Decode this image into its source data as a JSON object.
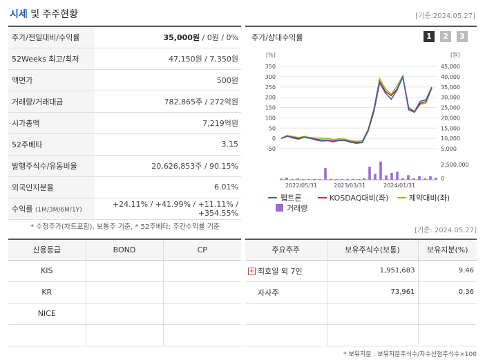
{
  "header": {
    "title_blue": "시세",
    "title_rest": " 및 주주현황",
    "date": "[기준:2024.05.27]"
  },
  "quote": {
    "price_label": "주가/전일대비/수익률",
    "price_value": "35,000원",
    "change_value": " / 0원 / 0%",
    "w52_label": "52Weeks 최고/최저",
    "w52_value": "47,150원 / 7,350원",
    "par_label": "액면가",
    "par_value": "500원",
    "volume_label": "거래량/거래대금",
    "volume_value": "782,865주 / 272억원",
    "mcap_label": "시가총액",
    "mcap_value": "7,219억원",
    "beta_label": "52주베타",
    "beta_value": "3.15",
    "shares_label": "발행주식수/유동비율",
    "shares_value": "20,626,853주 / 90.15%",
    "foreign_label": "외국인지분율",
    "foreign_value": "6.01%",
    "return_label": "수익률",
    "return_period": "(1M/3M/6M/1Y)",
    "return_value": "+24.11% / +41.99% / +11.11% / +354.55%"
  },
  "note1": "* 수정주가(차트포함), 보통주 기준, * 52주베타: 주간수익률 기준",
  "chart_header": {
    "title": "주가/상대수익률",
    "pages": [
      "1",
      "2",
      "3"
    ]
  },
  "chart_data": {
    "type": "line",
    "left_unit": "[%]",
    "right_unit": "[원]",
    "left_ticks": [
      "350",
      "300",
      "250",
      "200",
      "150",
      "100",
      "50",
      "0",
      "-50"
    ],
    "right_ticks": [
      "45,000",
      "40,000",
      "35,000",
      "30,000",
      "25,000",
      "20,000",
      "15,000",
      "10,000",
      "5,000"
    ],
    "ylim_left": [
      -50,
      350
    ],
    "volume_tick": "2,500,000",
    "volume_zero": "0",
    "x_labels": [
      "2022/05/31",
      "2023/03/31",
      "2024/01/31"
    ],
    "series": [
      {
        "name": "펩트론",
        "color": "#3f5fb5",
        "values": [
          0,
          12,
          2,
          -4,
          6,
          0,
          -8,
          -13,
          -11,
          -17,
          -10,
          -11,
          -19,
          -24,
          -20,
          35,
          130,
          270,
          220,
          190,
          235,
          298,
          150,
          130,
          180,
          188,
          250
        ]
      },
      {
        "name": "KOSDAQ대비(좌)",
        "color": "#c9252a",
        "values": [
          0,
          10,
          5,
          0,
          6,
          1,
          -4,
          -8,
          -8,
          -13,
          -8,
          -9,
          -16,
          -20,
          -18,
          40,
          138,
          277,
          228,
          208,
          240,
          298,
          140,
          128,
          170,
          180,
          246
        ]
      },
      {
        "name": "제약대비(좌)",
        "color": "#8cbe24",
        "values": [
          0,
          14,
          9,
          4,
          10,
          4,
          2,
          0,
          0,
          -6,
          -2,
          -4,
          -10,
          -14,
          -12,
          42,
          145,
          290,
          240,
          215,
          255,
          305,
          140,
          126,
          165,
          172,
          245
        ]
      }
    ],
    "volume_name": "거래량",
    "volume_color": "#9b6cd6",
    "volume": [
      0.08,
      0.15,
      0.05,
      0.09,
      0.05,
      0.02,
      0.04,
      0.03,
      0.8,
      0.06,
      0.04,
      0.05,
      0.02,
      0.06,
      0.05,
      0.1,
      0.9,
      0.4,
      1.25,
      0.3,
      0.48,
      0.55,
      0.1,
      0.32,
      0.1,
      0.25,
      0.1,
      0.25,
      0.15
    ]
  },
  "date_mid": "[기준: 2024.05.27]",
  "credit": {
    "headers": [
      "신용등급",
      "BOND",
      "CP"
    ],
    "rows": [
      {
        "agency": "KIS",
        "bond": "",
        "cp": ""
      },
      {
        "agency": "KR",
        "bond": "",
        "cp": ""
      },
      {
        "agency": "NICE",
        "bond": "",
        "cp": ""
      },
      {
        "agency": "",
        "bond": "",
        "cp": ""
      }
    ]
  },
  "holders": {
    "headers": [
      "주요주주",
      "보유주식수(보통)",
      "보유지분(%)"
    ],
    "rows": [
      {
        "name": "최호일 외 7인",
        "shares": "1,951,683",
        "pct": "9.46"
      },
      {
        "name": "자사주",
        "shares": "73,961",
        "pct": "0.36"
      },
      {
        "name": "",
        "shares": "",
        "pct": ""
      },
      {
        "name": "",
        "shares": "",
        "pct": ""
      }
    ]
  },
  "note2": "* 보유지분 : 보유지분주식수/자수산정주식수×100"
}
